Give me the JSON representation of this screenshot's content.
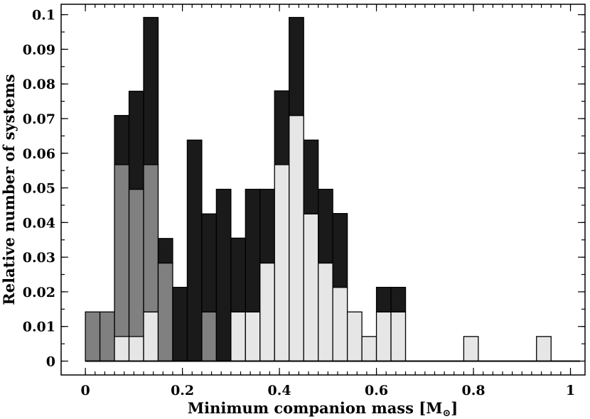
{
  "chart_data": {
    "type": "bar",
    "stacked": true,
    "xlabel": "Minimum companion mass [M",
    "xlabel_subscript": "⊙",
    "xlabel_suffix": "]",
    "ylabel": "Relative number of systems",
    "xlim": [
      -0.05,
      1.03
    ],
    "ylim": [
      -0.004,
      0.103
    ],
    "bin_width": 0.03,
    "x_ticks": [
      0,
      0.2,
      0.4,
      0.6,
      0.8,
      1
    ],
    "x_tick_labels": [
      "0",
      "0.2",
      "0.4",
      "0.6",
      "0.8",
      "1"
    ],
    "y_ticks": [
      0,
      0.01,
      0.02,
      0.03,
      0.04,
      0.05,
      0.06,
      0.07,
      0.08,
      0.09,
      0.1
    ],
    "y_tick_labels": [
      "0",
      "0.01",
      "0.02",
      "0.03",
      "0.04",
      "0.05",
      "0.06",
      "0.07",
      "0.08",
      "0.09",
      "0.1"
    ],
    "grid": false,
    "legend": "none",
    "series": [
      {
        "color": "#e6e6e6",
        "values": [
          0,
          0,
          0.0071,
          0.0071,
          0.0142,
          0,
          0,
          0,
          0,
          0,
          0.0142,
          0.0142,
          0.0283,
          0.0567,
          0.0709,
          0.0425,
          0.0283,
          0.0213,
          0.0142,
          0.0071,
          0.0142,
          0.0142,
          0,
          0,
          0,
          0,
          0.0071,
          0,
          0,
          0,
          0,
          0.0071,
          0,
          0
        ]
      },
      {
        "color": "#808080",
        "values": [
          0.0142,
          0.0142,
          0.0496,
          0.0425,
          0.0425,
          0.0283,
          0,
          0,
          0.0142,
          0,
          0,
          0,
          0,
          0,
          0,
          0,
          0,
          0,
          0,
          0,
          0,
          0,
          0,
          0,
          0,
          0,
          0,
          0,
          0,
          0,
          0,
          0,
          0,
          0
        ]
      },
      {
        "color": "#1a1a1a",
        "values": [
          0,
          0,
          0.0142,
          0.0283,
          0.0425,
          0.0071,
          0.0213,
          0.0638,
          0.0283,
          0.0496,
          0.0213,
          0.0354,
          0.0213,
          0.0213,
          0.0283,
          0.0213,
          0.0213,
          0.0213,
          0,
          0,
          0.0071,
          0.0071,
          0,
          0,
          0,
          0,
          0,
          0,
          0,
          0,
          0,
          0,
          0,
          0
        ]
      }
    ]
  }
}
